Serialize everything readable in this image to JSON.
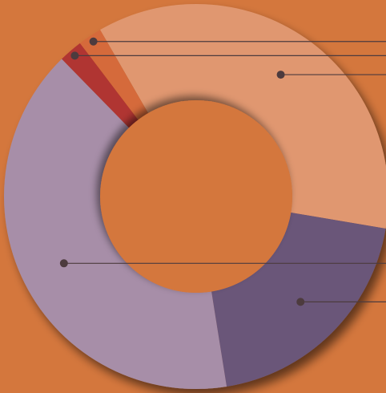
{
  "chart_data": {
    "type": "pie",
    "style": "donut",
    "background_color": "#d4773d",
    "segments": [
      {
        "value": 36.0,
        "color": "#e0976f"
      },
      {
        "value": 19.8,
        "color": "#6b5679"
      },
      {
        "value": 40.2,
        "color": "#a78ea8"
      },
      {
        "value": 2.0,
        "color": "#b03430"
      },
      {
        "value": 2.0,
        "color": "#d56b3a"
      }
    ],
    "leader_line_color": "#4d3b3e",
    "legend": "none"
  }
}
